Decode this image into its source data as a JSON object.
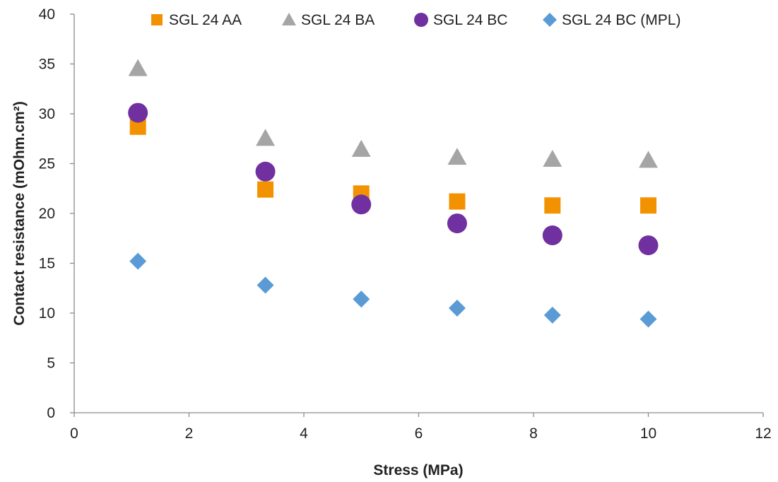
{
  "chart_data": {
    "type": "scatter",
    "title": "",
    "xlabel": "Stress (MPa)",
    "ylabel": "Contact resistance (mOhm.cm²)",
    "xlim": [
      0,
      12
    ],
    "ylim": [
      0,
      40
    ],
    "x_ticks": [
      "0",
      "2",
      "4",
      "6",
      "8",
      "10",
      "12"
    ],
    "y_ticks": [
      "0",
      "5",
      "10",
      "15",
      "20",
      "25",
      "30",
      "35",
      "40"
    ],
    "grid": false,
    "legend_position": "top",
    "series": [
      {
        "name": "SGL 24 AA",
        "marker": "square",
        "color": "#F39200",
        "x": [
          1.11,
          3.33,
          5.0,
          6.67,
          8.33,
          10.0
        ],
        "y": [
          28.7,
          22.4,
          22.0,
          21.2,
          20.8,
          20.8
        ]
      },
      {
        "name": "SGL 24 BA",
        "marker": "triangle",
        "color": "#A5A5A5",
        "x": [
          1.11,
          3.33,
          5.0,
          6.67,
          8.33,
          10.0
        ],
        "y": [
          34.5,
          27.5,
          26.4,
          25.6,
          25.4,
          25.3
        ]
      },
      {
        "name": "SGL 24 BC",
        "marker": "circle",
        "color": "#7030A0",
        "x": [
          1.11,
          3.33,
          5.0,
          6.67,
          8.33,
          10.0
        ],
        "y": [
          30.1,
          24.2,
          20.9,
          19.0,
          17.8,
          16.8
        ]
      },
      {
        "name": "SGL 24 BC (MPL)",
        "marker": "diamond",
        "color": "#5B9BD5",
        "x": [
          1.11,
          3.33,
          5.0,
          6.67,
          8.33,
          10.0
        ],
        "y": [
          15.2,
          12.8,
          11.4,
          10.5,
          9.8,
          9.4
        ]
      }
    ]
  }
}
